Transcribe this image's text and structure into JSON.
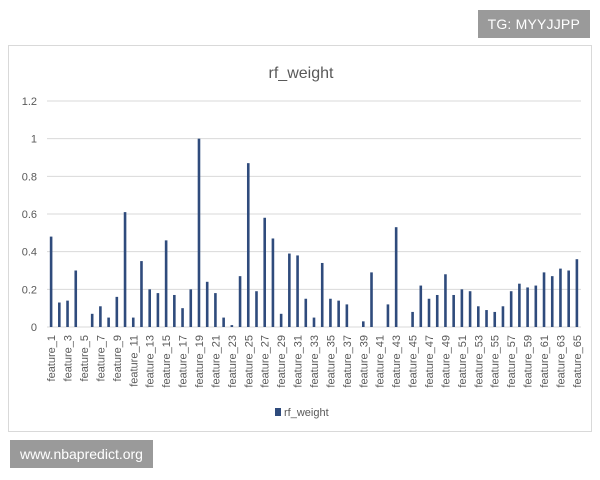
{
  "watermarks": {
    "top_right": "TG: MYYJJPP",
    "bottom_left": "www.nbapredict.org"
  },
  "chart_data": {
    "type": "bar",
    "title": "rf_weight",
    "xlabel": "",
    "ylabel": "",
    "ylim": [
      0,
      1.2
    ],
    "yticks": [
      "0",
      "0.2",
      "0.4",
      "0.6",
      "0.8",
      "1",
      "1.2"
    ],
    "grid": true,
    "legend": "bottom",
    "colors": {
      "bar": "#2f4b7c",
      "grid": "#d9d9d9",
      "text": "#595959"
    },
    "categories": [
      "feature_1",
      "feature_2",
      "feature_3",
      "feature_4",
      "feature_5",
      "feature_6",
      "feature_7",
      "feature_8",
      "feature_9",
      "feature_10",
      "feature_11",
      "feature_12",
      "feature_13",
      "feature_14",
      "feature_15",
      "feature_16",
      "feature_17",
      "feature_18",
      "feature_19",
      "feature_20",
      "feature_21",
      "feature_22",
      "feature_23",
      "feature_24",
      "feature_25",
      "feature_26",
      "feature_27",
      "feature_28",
      "feature_29",
      "feature_30",
      "feature_31",
      "feature_32",
      "feature_33",
      "feature_34",
      "feature_35",
      "feature_36",
      "feature_37",
      "feature_38",
      "feature_39",
      "feature_40",
      "feature_41",
      "feature_42",
      "feature_43",
      "feature_44",
      "feature_45",
      "feature_46",
      "feature_47",
      "feature_48",
      "feature_49",
      "feature_50",
      "feature_51",
      "feature_52",
      "feature_53",
      "feature_54",
      "feature_55",
      "feature_56",
      "feature_57",
      "feature_58",
      "feature_59",
      "feature_60",
      "feature_61",
      "feature_62",
      "feature_63",
      "feature_64",
      "feature_65"
    ],
    "series": [
      {
        "name": "rf_weight",
        "values": [
          0.48,
          0.13,
          0.14,
          0.3,
          0.0,
          0.07,
          0.11,
          0.05,
          0.16,
          0.61,
          0.05,
          0.35,
          0.2,
          0.18,
          0.46,
          0.17,
          0.1,
          0.2,
          1.0,
          0.24,
          0.18,
          0.05,
          0.01,
          0.27,
          0.87,
          0.19,
          0.58,
          0.47,
          0.07,
          0.39,
          0.38,
          0.15,
          0.05,
          0.34,
          0.15,
          0.14,
          0.12,
          0.0,
          0.03,
          0.29,
          0.0,
          0.12,
          0.53,
          0.0,
          0.08,
          0.22,
          0.15,
          0.17,
          0.28,
          0.17,
          0.2,
          0.19,
          0.11,
          0.09,
          0.08,
          0.11,
          0.19,
          0.23,
          0.21,
          0.22,
          0.29,
          0.27,
          0.31,
          0.3,
          0.36
        ]
      }
    ],
    "xtick_labels": [
      "feature_1",
      "feature_3",
      "feature_5",
      "feature_7",
      "feature_9",
      "feature_11",
      "feature_13",
      "feature_15",
      "feature_17",
      "feature_19",
      "feature_21",
      "feature_23",
      "feature_25",
      "feature_27",
      "feature_29",
      "feature_31",
      "feature_33",
      "feature_35",
      "feature_37",
      "feature_39",
      "feature_41",
      "feature_43",
      "feature_45",
      "feature_47",
      "feature_49",
      "feature_51",
      "feature_53",
      "feature_55",
      "feature_57",
      "feature_59",
      "feature_61",
      "feature_63",
      "feature_65"
    ]
  }
}
